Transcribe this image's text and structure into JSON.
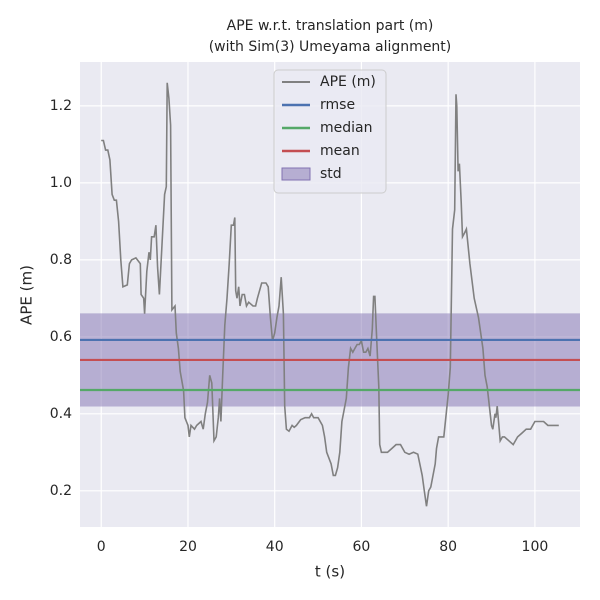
{
  "chart_data": {
    "type": "line",
    "title": "APE w.r.t. translation part (m)",
    "subtitle": "(with Sim(3) Umeyama alignment)",
    "xlabel": "t (s)",
    "ylabel": "APE (m)",
    "xlim": [
      -4.9,
      110.4
    ],
    "ylim": [
      0.106,
      1.314
    ],
    "xticks": [
      0,
      20,
      40,
      60,
      80,
      100
    ],
    "yticks": [
      0.2,
      0.4,
      0.6,
      0.8,
      {
        "value": 1,
        "label": "1.0"
      },
      1.2
    ],
    "grid": true,
    "legend": "upper center",
    "x": [
      0,
      0.5,
      1,
      1.5,
      2,
      2.5,
      3,
      3.5,
      4,
      4.5,
      5,
      6,
      6.5,
      7,
      8,
      9,
      9.2,
      9.8,
      10,
      10.5,
      11,
      11.3,
      11.6,
      12.2,
      12.6,
      13,
      13.4,
      14,
      14.6,
      15,
      15.2,
      15.6,
      16,
      16.3,
      17,
      17.3,
      17.8,
      18.2,
      19,
      19.3,
      20,
      20.3,
      20.7,
      21.5,
      22,
      23,
      23.5,
      24,
      24.5,
      25,
      25.5,
      26,
      26.5,
      27,
      27.3,
      27.6,
      28,
      28.5,
      29,
      29.5,
      30,
      30.5,
      30.8,
      31,
      31.3,
      31.7,
      32,
      32.5,
      33,
      33.5,
      34,
      35,
      35.6,
      36,
      37,
      38,
      38.5,
      39,
      39.5,
      40,
      40.5,
      41,
      41.5,
      42,
      42.3,
      42.7,
      43.3,
      44,
      44.5,
      45,
      46,
      47,
      48,
      48.5,
      49,
      50,
      51,
      51.5,
      52,
      53,
      53.5,
      54,
      54.5,
      55,
      55.5,
      56,
      56.5,
      57,
      57.5,
      58,
      58.5,
      59,
      59.5,
      60,
      60.5,
      61,
      61.5,
      62,
      62.5,
      62.8,
      63.1,
      63.5,
      64,
      64.2,
      64.6,
      65,
      66,
      67,
      68,
      69,
      70,
      71,
      72,
      73,
      74,
      74.5,
      75,
      75.5,
      76,
      77,
      77.3,
      77.8,
      79,
      80,
      80.5,
      81,
      81.5,
      81.8,
      82,
      82.3,
      82.6,
      83,
      83.3,
      83.8,
      84.2,
      85,
      86,
      87,
      88,
      88.5,
      89,
      89.3,
      90,
      90.3,
      90.8,
      91,
      91.3,
      92,
      92.5,
      93,
      94,
      95,
      96,
      97,
      98,
      99,
      100,
      101,
      102,
      103,
      104,
      105,
      105.5
    ],
    "series": [
      {
        "name": "APE (m)",
        "color": "#808080",
        "values": [
          1.11,
          1.11,
          1.085,
          1.085,
          1.06,
          0.97,
          0.955,
          0.955,
          0.9,
          0.8,
          0.73,
          0.735,
          0.79,
          0.8,
          0.805,
          0.79,
          0.71,
          0.7,
          0.66,
          0.77,
          0.82,
          0.8,
          0.86,
          0.86,
          0.89,
          0.78,
          0.71,
          0.84,
          0.97,
          0.99,
          1.26,
          1.22,
          1.15,
          0.67,
          0.68,
          0.61,
          0.57,
          0.51,
          0.46,
          0.39,
          0.37,
          0.34,
          0.37,
          0.36,
          0.37,
          0.38,
          0.36,
          0.4,
          0.43,
          0.5,
          0.48,
          0.33,
          0.34,
          0.39,
          0.44,
          0.38,
          0.5,
          0.63,
          0.7,
          0.79,
          0.89,
          0.89,
          0.91,
          0.72,
          0.7,
          0.73,
          0.68,
          0.71,
          0.71,
          0.68,
          0.69,
          0.68,
          0.68,
          0.7,
          0.74,
          0.74,
          0.73,
          0.65,
          0.59,
          0.61,
          0.65,
          0.68,
          0.755,
          0.66,
          0.42,
          0.36,
          0.355,
          0.37,
          0.365,
          0.37,
          0.385,
          0.39,
          0.39,
          0.4,
          0.39,
          0.39,
          0.37,
          0.34,
          0.3,
          0.27,
          0.24,
          0.24,
          0.26,
          0.3,
          0.38,
          0.41,
          0.44,
          0.52,
          0.57,
          0.56,
          0.57,
          0.58,
          0.58,
          0.59,
          0.56,
          0.56,
          0.57,
          0.55,
          0.62,
          0.705,
          0.705,
          0.6,
          0.47,
          0.32,
          0.3,
          0.3,
          0.3,
          0.31,
          0.32,
          0.32,
          0.3,
          0.295,
          0.3,
          0.295,
          0.24,
          0.2,
          0.16,
          0.2,
          0.21,
          0.27,
          0.31,
          0.34,
          0.34,
          0.45,
          0.52,
          0.88,
          0.93,
          1.23,
          1.2,
          1.03,
          1.05,
          0.95,
          0.86,
          0.87,
          0.88,
          0.79,
          0.7,
          0.65,
          0.57,
          0.5,
          0.47,
          0.44,
          0.37,
          0.36,
          0.4,
          0.39,
          0.42,
          0.33,
          0.34,
          0.34,
          0.33,
          0.32,
          0.34,
          0.35,
          0.36,
          0.36,
          0.38,
          0.38,
          0.38,
          0.37,
          0.37,
          0.37,
          0.37
        ]
      }
    ],
    "hlines": [
      {
        "name": "rmse",
        "color": "#4c72b0",
        "value": 0.592
      },
      {
        "name": "median",
        "color": "#55a868",
        "value": 0.462
      },
      {
        "name": "mean",
        "color": "#c44e52",
        "value": 0.54
      }
    ],
    "std": {
      "name": "std",
      "color": "#8172b2",
      "value": 0.121
    }
  }
}
